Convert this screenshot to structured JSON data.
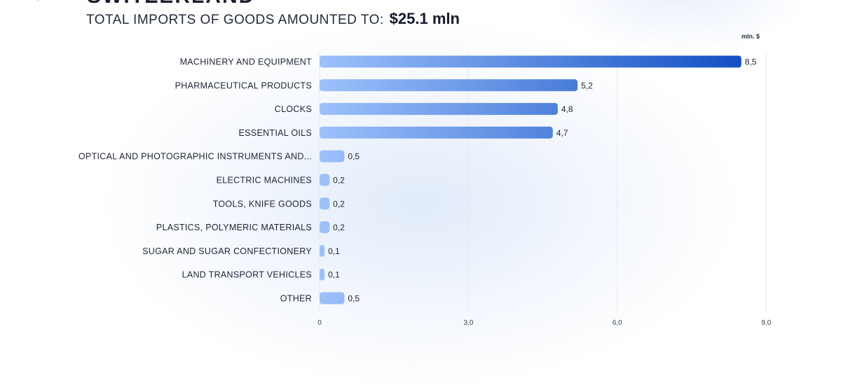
{
  "header": {
    "country": "SWITZERLAND",
    "headline_text": "TOTAL IMPORTS OF GOODS AMOUNTED TO:",
    "headline_value": "$25.1  mln"
  },
  "colors": {
    "bar_light": "#9dc1fb",
    "bar_dark": "#1350c4",
    "grid": "#e6e9ef",
    "logo": "#6f95d8"
  },
  "icons": {
    "logo": "diamond-logo-icon"
  },
  "chart_data": {
    "type": "bar",
    "orientation": "horizontal",
    "unit_label": "mln. $",
    "categories": [
      "MACHINERY AND EQUIPMENT",
      "PHARMACEUTICAL PRODUCTS",
      "CLOCKS",
      "ESSENTIAL OILS",
      "OPTICAL AND PHOTOGRAPHIC INSTRUMENTS AND...",
      "ELECTRIC MACHINES",
      "TOOLS, KNIFE GOODS",
      "PLASTICS, POLYMERIC MATERIALS",
      "SUGAR AND SUGAR CONFECTIONERY",
      "LAND TRANSPORT VEHICLES",
      "OTHER"
    ],
    "values": [
      8.5,
      5.2,
      4.8,
      4.7,
      0.5,
      0.2,
      0.2,
      0.2,
      0.1,
      0.1,
      0.5
    ],
    "value_labels": [
      "8,5",
      "5,2",
      "4,8",
      "4,7",
      "0,5",
      "0,2",
      "0,2",
      "0,2",
      "0,1",
      "0,1",
      "0,5"
    ],
    "xlim": [
      0,
      9
    ],
    "xticks": [
      0,
      3,
      6,
      9
    ],
    "xtick_labels": [
      "0",
      "3,0",
      "6,0",
      "9,0"
    ],
    "grid": true
  }
}
